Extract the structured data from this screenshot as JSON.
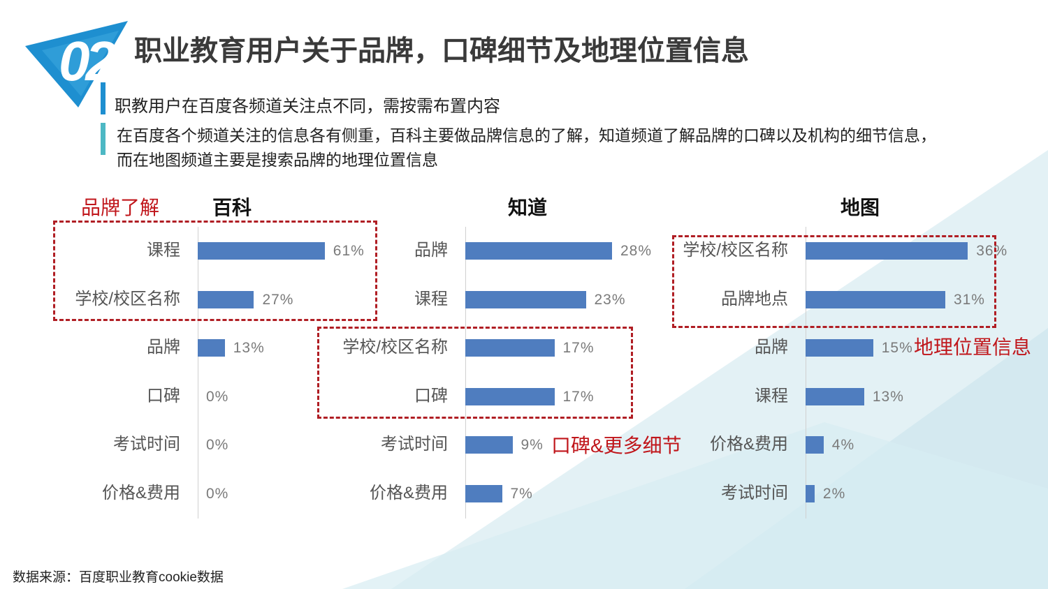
{
  "header": {
    "badge": "02",
    "title": "职业教育用户关于品牌，口碑细节及地理位置信息",
    "subtitle": "职教用户在百度各频道关注点不同，需按需布置内容",
    "description_lines": [
      "在百度各个频道关注的信息各有侧重，百科主要做品牌信息的了解，知道频道了解品牌的口碑以及机构的细节信息，",
      "而在地图频道主要是搜索品牌的地理位置信息"
    ],
    "colors": {
      "accent_blue": "#1e8fd0",
      "accent_teal": "#4db8c4",
      "bar": "#4f7dbf",
      "annotation": "#c0161b"
    }
  },
  "chart_data": [
    {
      "type": "bar",
      "orientation": "horizontal",
      "title": "百科",
      "categories": [
        "课程",
        "学校/校区名称",
        "品牌",
        "口碑",
        "考试时间",
        "价格&费用"
      ],
      "values": [
        61,
        27,
        13,
        0,
        0,
        0
      ],
      "value_labels": [
        "61%",
        "27%",
        "13%",
        "0%",
        "0%",
        "0%"
      ],
      "grid": false,
      "highlighted_categories": [
        "课程",
        "学校/校区名称"
      ],
      "annotation": "品牌了解"
    },
    {
      "type": "bar",
      "orientation": "horizontal",
      "title": "知道",
      "categories": [
        "品牌",
        "课程",
        "学校/校区名称",
        "口碑",
        "考试时间",
        "价格&费用"
      ],
      "values": [
        28,
        23,
        17,
        17,
        9,
        7
      ],
      "value_labels": [
        "28%",
        "23%",
        "17%",
        "17%",
        "9%",
        "7%"
      ],
      "grid": false,
      "highlighted_categories": [
        "学校/校区名称",
        "口碑"
      ],
      "annotation": "口碑&更多细节"
    },
    {
      "type": "bar",
      "orientation": "horizontal",
      "title": "地图",
      "categories": [
        "学校/校区名称",
        "品牌地点",
        "品牌",
        "课程",
        "价格&费用",
        "考试时间"
      ],
      "values": [
        36,
        31,
        15,
        13,
        4,
        2
      ],
      "value_labels": [
        "36%",
        "31%",
        "15%",
        "13%",
        "4%",
        "2%"
      ],
      "grid": false,
      "highlighted_categories": [
        "学校/校区名称",
        "品牌地点"
      ],
      "annotation": "地理位置信息"
    }
  ],
  "footer": {
    "source": "数据来源：百度职业教育cookie数据"
  }
}
